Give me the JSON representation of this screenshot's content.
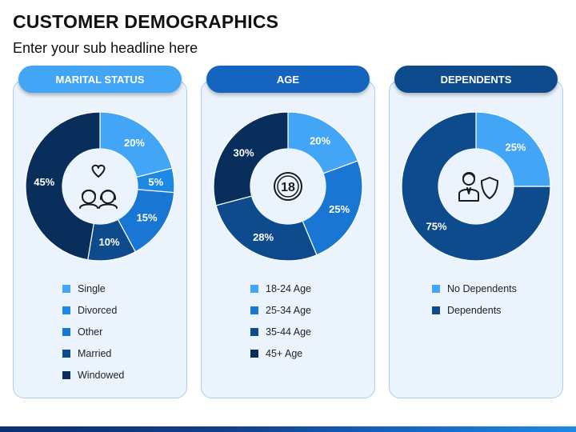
{
  "title": "CUSTOMER DEMOGRAPHICS",
  "subtitle": "Enter your sub headline here",
  "panels": [
    {
      "header": "MARITAL STATUS",
      "header_color": "#42a5f5",
      "icon": "couple-heart-icon"
    },
    {
      "header": "AGE",
      "header_color": "#1565c0",
      "icon": "age-18-icon"
    },
    {
      "header": "DEPENDENTS",
      "header_color": "#0d4b8c",
      "icon": "family-shield-icon"
    }
  ],
  "chart_data": [
    {
      "type": "pie",
      "title": "MARITAL STATUS",
      "categories": [
        "Single",
        "Divorced",
        "Other",
        "Married",
        "Windowed"
      ],
      "values": [
        20,
        5,
        15,
        10,
        45
      ],
      "labels": [
        "20%",
        "5%",
        "15%",
        "10%",
        "45%"
      ],
      "colors": [
        "#42a5f5",
        "#1e88e5",
        "#1976d2",
        "#0d4b8c",
        "#0a2e5c"
      ],
      "legend": "bottom"
    },
    {
      "type": "pie",
      "title": "AGE",
      "categories": [
        "18-24 Age",
        "25-34 Age",
        "35-44 Age",
        "45+ Age"
      ],
      "values": [
        20,
        25,
        28,
        30
      ],
      "labels": [
        "20%",
        "25%",
        "28%",
        "30%"
      ],
      "colors": [
        "#42a5f5",
        "#1976d2",
        "#0d4b8c",
        "#0a2e5c"
      ],
      "legend": "bottom"
    },
    {
      "type": "pie",
      "title": "DEPENDENTS",
      "categories": [
        "No Dependents",
        "Dependents"
      ],
      "values": [
        25,
        75
      ],
      "labels": [
        "25%",
        "75%"
      ],
      "colors": [
        "#42a5f5",
        "#0d4b8c"
      ],
      "legend": "bottom"
    }
  ]
}
